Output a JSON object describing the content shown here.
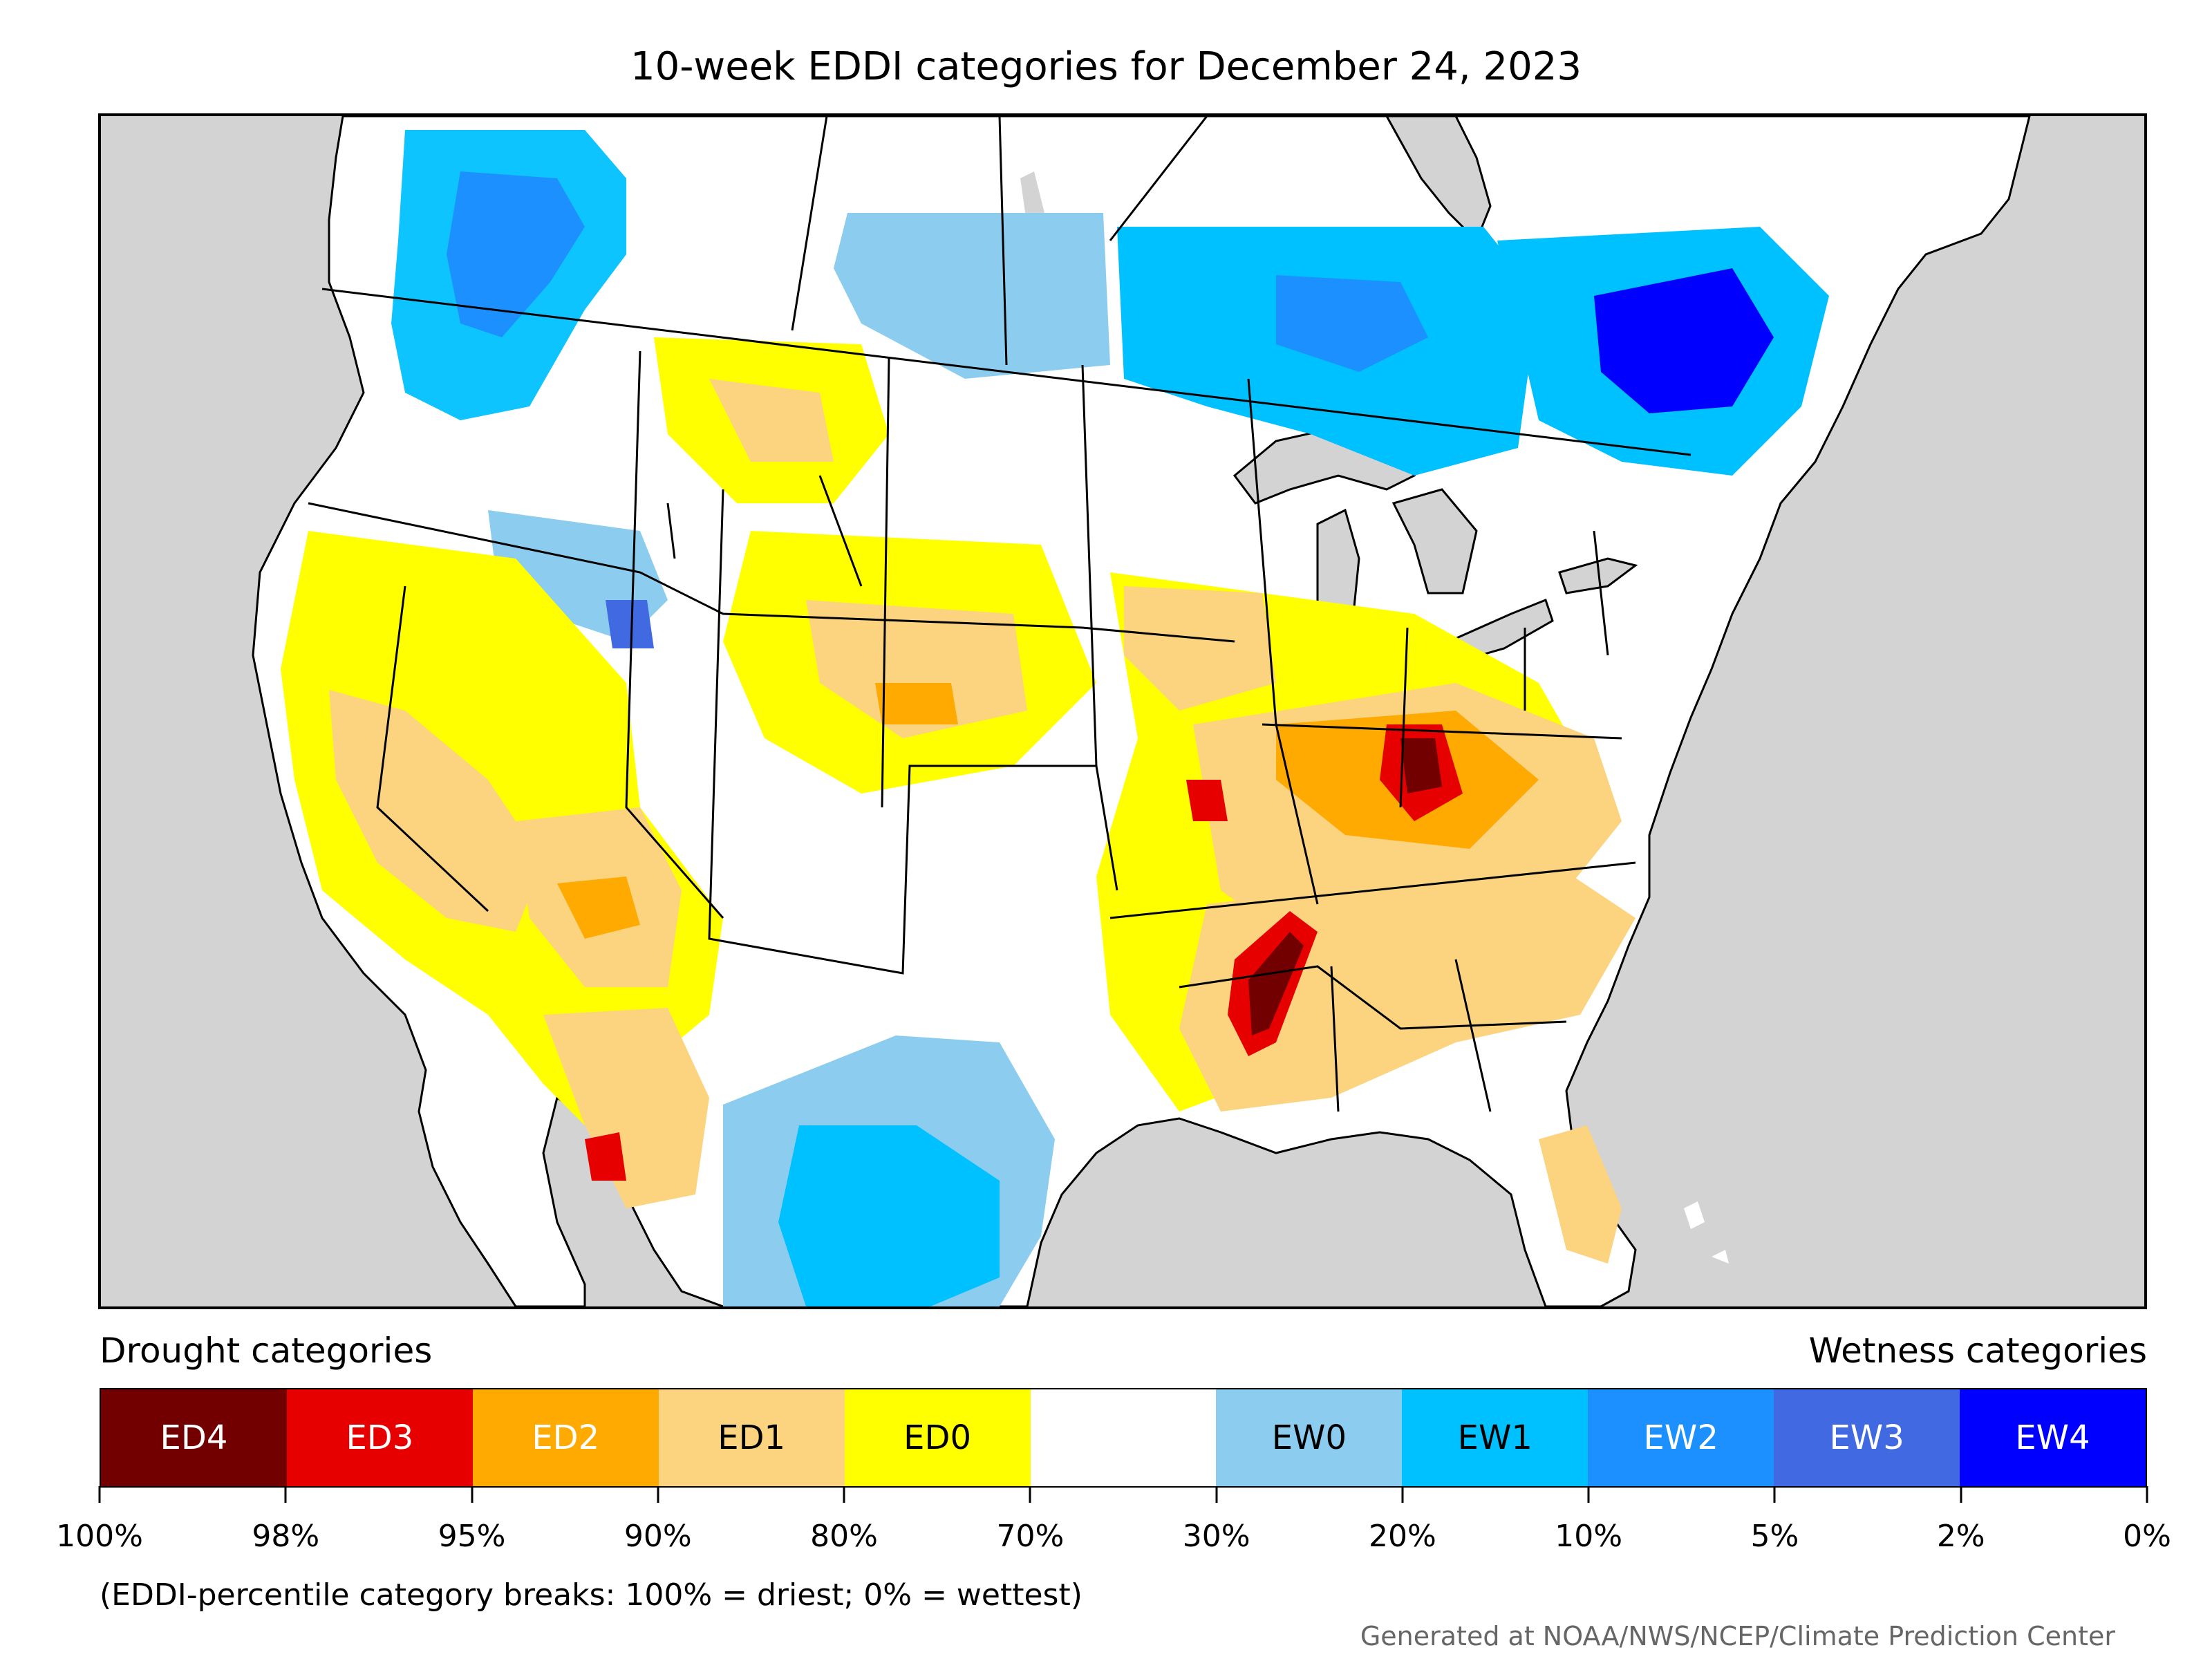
{
  "title": "10-week EDDI categories for December 24, 2023",
  "colors": {
    "land": "#ffffff",
    "water": "#d3d3d3",
    "border": "#000000",
    "ED4": "#730000",
    "ED3": "#e60000",
    "ED2": "#ffaa00",
    "ED1": "#fcd37f",
    "ED0": "#ffff00",
    "neutral": "#ffffff",
    "EW0": "#8ccdef",
    "EW1": "#00c1ff",
    "EW2": "#1d90ff",
    "EW3": "#4169e1",
    "EW4": "#0000ff"
  },
  "legend": {
    "drought_heading": "Drought categories",
    "wetness_heading": "Wetness categories",
    "categories": [
      {
        "label": "ED4",
        "color": "#730000",
        "text_color": "#ffffff"
      },
      {
        "label": "ED3",
        "color": "#e60000",
        "text_color": "#ffffff"
      },
      {
        "label": "ED2",
        "color": "#ffaa00",
        "text_color": "#ffffff"
      },
      {
        "label": "ED1",
        "color": "#fcd37f",
        "text_color": "#000000"
      },
      {
        "label": "ED0",
        "color": "#ffff00",
        "text_color": "#000000"
      },
      {
        "label": "",
        "color": "#ffffff",
        "text_color": "#000000"
      },
      {
        "label": "EW0",
        "color": "#8ccdef",
        "text_color": "#000000"
      },
      {
        "label": "EW1",
        "color": "#00c1ff",
        "text_color": "#000000"
      },
      {
        "label": "EW2",
        "color": "#1d90ff",
        "text_color": "#ffffff"
      },
      {
        "label": "EW3",
        "color": "#4169e1",
        "text_color": "#ffffff"
      },
      {
        "label": "EW4",
        "color": "#0000ff",
        "text_color": "#ffffff"
      }
    ],
    "ticks": [
      "100%",
      "98%",
      "95%",
      "90%",
      "80%",
      "70%",
      "30%",
      "20%",
      "10%",
      "5%",
      "2%",
      "0%"
    ]
  },
  "note": "(EDDI-percentile category breaks: 100% = driest; 0% = wettest)",
  "credit": "Generated at NOAA/NWS/NCEP/Climate Prediction Center"
}
